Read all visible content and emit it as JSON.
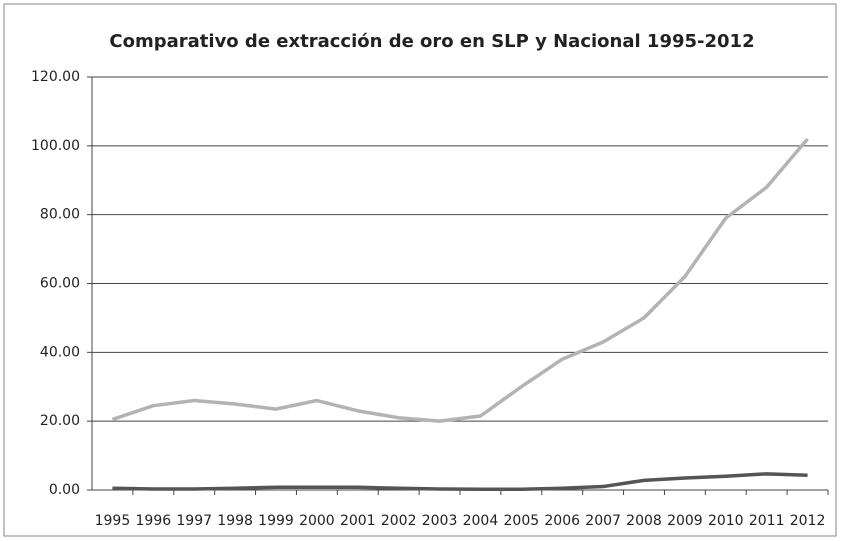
{
  "chart_data": {
    "type": "line",
    "title": "Comparativo de extracción de oro en SLP y Nacional 1995-2012",
    "categories": [
      "1995",
      "1996",
      "1997",
      "1998",
      "1999",
      "2000",
      "2001",
      "2002",
      "2003",
      "2004",
      "2005",
      "2006",
      "2007",
      "2008",
      "2009",
      "2010",
      "2011",
      "2012"
    ],
    "series": [
      {
        "color": "#b3b3b3",
        "values": [
          20.5,
          24.5,
          26,
          25,
          23.5,
          26,
          23,
          21,
          20,
          21.5,
          30,
          38,
          43,
          50,
          62,
          79,
          88,
          102
        ]
      },
      {
        "color": "#555555",
        "values": [
          0.5,
          0.3,
          0.3,
          0.5,
          0.8,
          0.8,
          0.8,
          0.5,
          0.3,
          0.2,
          0.2,
          0.5,
          1,
          2.8,
          3.5,
          4,
          4.7,
          4.3
        ]
      }
    ],
    "ylim": [
      0,
      120
    ],
    "yticks": [
      {
        "value": 0,
        "label": "0.00"
      },
      {
        "value": 20,
        "label": "20.00"
      },
      {
        "value": 40,
        "label": "40.00"
      },
      {
        "value": 60,
        "label": "60.00"
      },
      {
        "value": 80,
        "label": "80.00"
      },
      {
        "value": 100,
        "label": "100.00"
      },
      {
        "value": 120,
        "label": "120.00"
      }
    ],
    "grid": true
  }
}
